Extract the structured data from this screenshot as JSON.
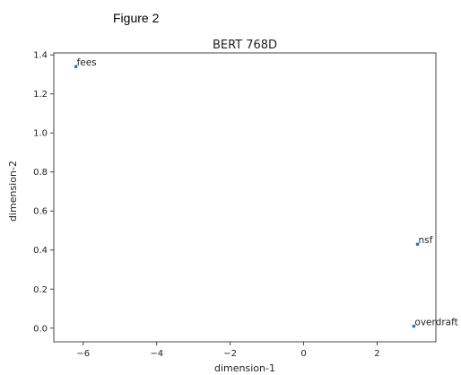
{
  "figure_caption": "Figure 2",
  "chart_data": {
    "type": "scatter",
    "title": "BERT 768D",
    "xlabel": "dimension-1",
    "ylabel": "dimension-2",
    "xlim": [
      -6.8,
      3.6
    ],
    "ylim": [
      -0.07,
      1.41
    ],
    "xticks": [
      -6,
      -4,
      -2,
      0,
      2
    ],
    "xtick_labels": [
      "−6",
      "−4",
      "−2",
      "0",
      "2"
    ],
    "yticks": [
      0.0,
      0.2,
      0.4,
      0.6,
      0.8,
      1.0,
      1.2,
      1.4
    ],
    "ytick_labels": [
      "0.0",
      "0.2",
      "0.4",
      "0.6",
      "0.8",
      "1.0",
      "1.2",
      "1.4"
    ],
    "grid": false,
    "point_color": "#1f77b4",
    "points": [
      {
        "label": "fees",
        "x": -6.2,
        "y": 1.34
      },
      {
        "label": "nsf",
        "x": 3.1,
        "y": 0.43
      },
      {
        "label": "overdraft",
        "x": 3.0,
        "y": 0.01
      }
    ]
  }
}
